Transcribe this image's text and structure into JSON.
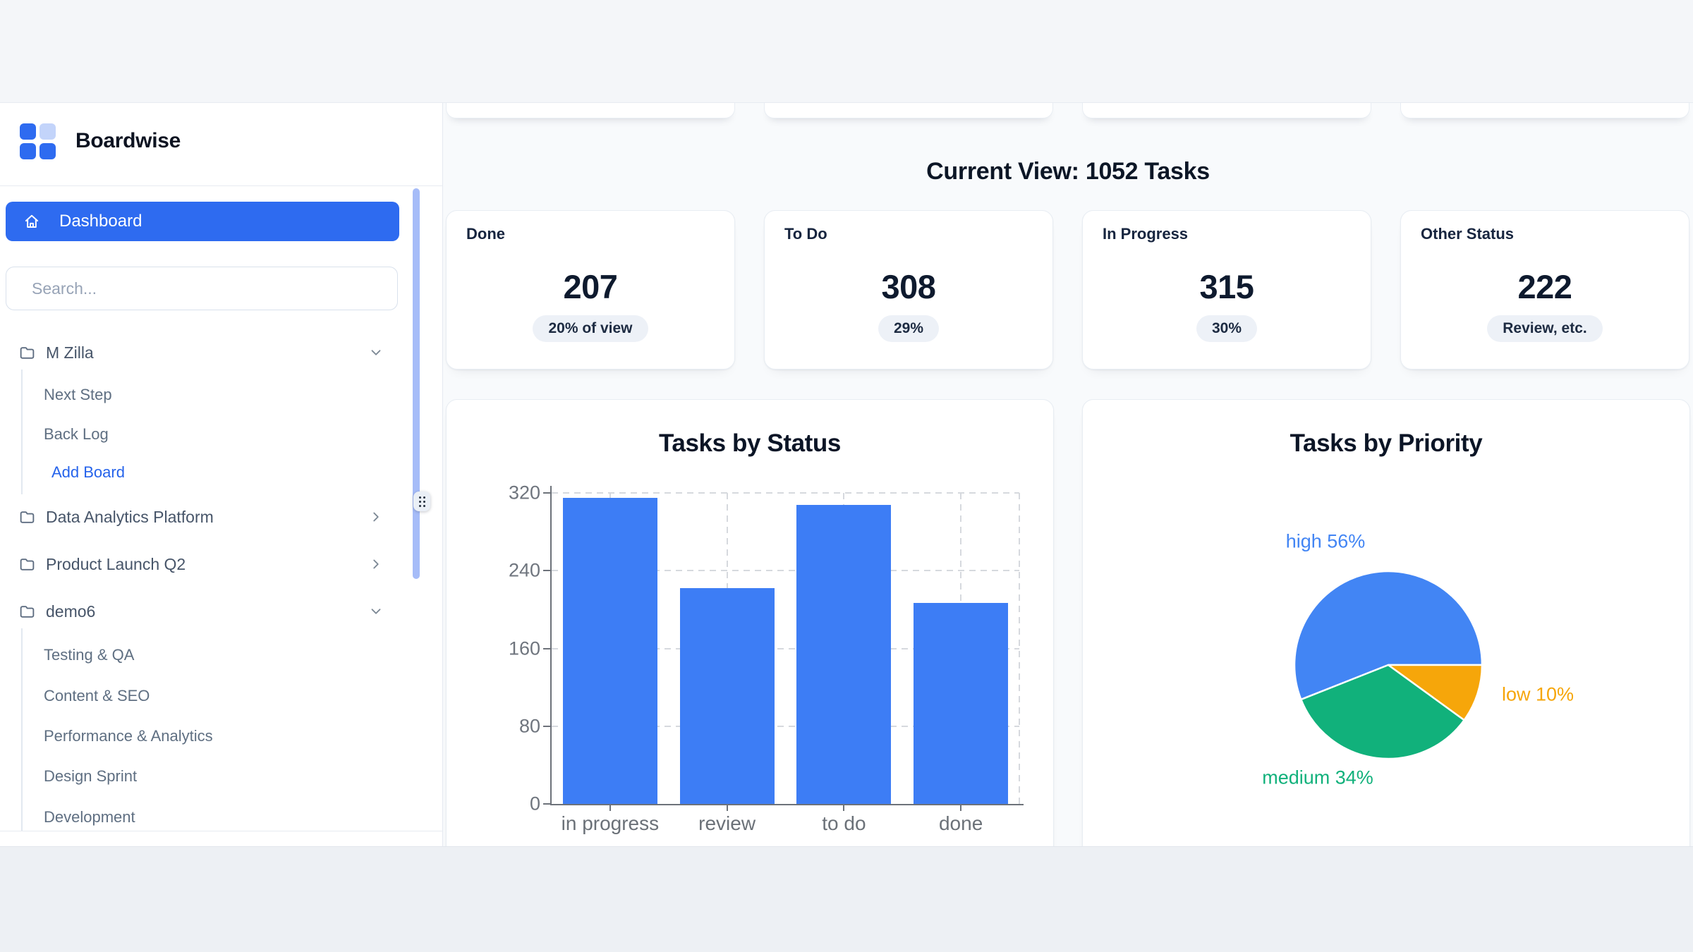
{
  "brand": {
    "name": "Boardwise"
  },
  "sidebar": {
    "dashboard_label": "Dashboard",
    "search_placeholder": "Search...",
    "groups": [
      {
        "label": "M Zilla",
        "chevron": "down",
        "children": [
          "Next Step",
          "Back Log"
        ],
        "action_label": "Add Board"
      },
      {
        "label": "Data Analytics Platform",
        "chevron": "right",
        "children": []
      },
      {
        "label": "Product Launch Q2",
        "chevron": "right",
        "children": []
      },
      {
        "label": "demo6",
        "chevron": "down",
        "children": [
          "Testing & QA",
          "Content & SEO",
          "Performance & Analytics",
          "Design Sprint",
          "Development"
        ]
      }
    ]
  },
  "header": {
    "title": "Current View: 1052 Tasks"
  },
  "stats": [
    {
      "label": "Done",
      "value": "207",
      "badge": "20% of view"
    },
    {
      "label": "To Do",
      "value": "308",
      "badge": "29%"
    },
    {
      "label": "In Progress",
      "value": "315",
      "badge": "30%"
    },
    {
      "label": "Other Status",
      "value": "222",
      "badge": "Review, etc."
    }
  ],
  "chart_data": [
    {
      "type": "bar",
      "title": "Tasks by Status",
      "categories": [
        "in progress",
        "review",
        "to do",
        "done"
      ],
      "values": [
        315,
        222,
        308,
        207
      ],
      "xlabel": "",
      "ylabel": "",
      "ylim": [
        0,
        320
      ],
      "yticks": [
        0,
        80,
        160,
        240,
        320
      ],
      "bar_color": "#3d7df5",
      "grid": "dashed",
      "legend": false
    },
    {
      "type": "pie",
      "title": "Tasks by Priority",
      "slices": [
        {
          "label": "high",
          "pct": 56,
          "color": "#4285f4"
        },
        {
          "label": "low",
          "pct": 10,
          "color": "#f6a60a"
        },
        {
          "label": "medium",
          "pct": 34,
          "color": "#11b17b"
        }
      ],
      "start_angle_deg_cw_from_top": 248.4,
      "label_format": "{label} {pct}%",
      "legend": false
    }
  ],
  "colors": {
    "accent_blue": "#2e6bf0",
    "link_blue": "#2563eb",
    "bar_blue": "#3d7df5",
    "pie_blue": "#4285f4",
    "pie_green": "#11b17b",
    "pie_orange": "#f6a60a",
    "scrollbar": "#a6bcf8"
  }
}
